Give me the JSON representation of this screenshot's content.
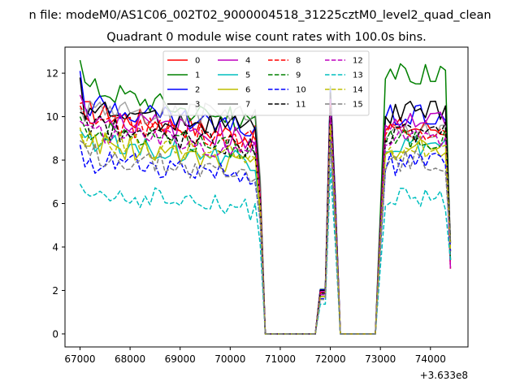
{
  "chart_data": {
    "type": "line",
    "suptitle": "n file: modeM0/AS1C06_002T02_9000004518_31225cztM0_level2_quad_clean",
    "title": "Quadrant 0 module wise count rates with 100.0s bins.",
    "xlabel": "",
    "ylabel": "",
    "x_offset_label": "+3.633e8",
    "xlim": [
      66700,
      74750
    ],
    "ylim": [
      -0.6,
      13.2
    ],
    "xticks": [
      67000,
      68000,
      69000,
      70000,
      71000,
      72000,
      73000,
      74000
    ],
    "yticks": [
      0,
      2,
      4,
      6,
      8,
      10,
      12
    ],
    "legend_location": "upper center",
    "legend_columns": 4,
    "shape": {
      "start": 67000,
      "step": 100,
      "drop_start": 70600,
      "drop_end": 70800,
      "gap1_end": 71700,
      "peak": 72000,
      "gap2_start": 72200,
      "gap2_end": 72900,
      "resume": 73100,
      "end": 74400,
      "final_drop_value": 3.0
    },
    "series": [
      {
        "name": "0",
        "color": "#ff0000",
        "dash": "solid",
        "level": 10.3,
        "first": 10.6,
        "end_level": 9.0,
        "post_level": 9.5,
        "peak": 10.6
      },
      {
        "name": "1",
        "color": "#008000",
        "dash": "solid",
        "level": 11.5,
        "first": 12.6,
        "end_level": 9.6,
        "post_level": 11.3,
        "peak": 11.4
      },
      {
        "name": "2",
        "color": "#0000ff",
        "dash": "solid",
        "level": 10.6,
        "first": 12.1,
        "end_level": 9.3,
        "post_level": 10.1,
        "peak": 11.3
      },
      {
        "name": "3",
        "color": "#000000",
        "dash": "solid",
        "level": 10.3,
        "first": 11.8,
        "end_level": 9.4,
        "post_level": 10.2,
        "peak": 11.1
      },
      {
        "name": "4",
        "color": "#bf00bf",
        "dash": "solid",
        "level": 10.1,
        "first": 11.0,
        "end_level": 8.9,
        "post_level": 9.8,
        "peak": 10.8
      },
      {
        "name": "5",
        "color": "#00bfbf",
        "dash": "solid",
        "level": 9.0,
        "first": 9.4,
        "end_level": 7.9,
        "post_level": 8.6,
        "peak": 9.6
      },
      {
        "name": "6",
        "color": "#bfbf00",
        "dash": "solid",
        "level": 8.9,
        "first": 9.2,
        "end_level": 7.6,
        "post_level": 8.5,
        "peak": 9.5
      },
      {
        "name": "7",
        "color": "#808080",
        "dash": "solid",
        "level": 10.3,
        "first": 10.4,
        "end_level": 10.0,
        "post_level": 9.2,
        "peak": 10.4
      },
      {
        "name": "8",
        "color": "#ff0000",
        "dash": "dashed",
        "level": 9.8,
        "first": 10.5,
        "end_level": 8.8,
        "post_level": 9.4,
        "peak": 10.5
      },
      {
        "name": "9",
        "color": "#008000",
        "dash": "dashed",
        "level": 9.5,
        "first": 10.0,
        "end_level": 8.4,
        "post_level": 9.0,
        "peak": 10.0
      },
      {
        "name": "10",
        "color": "#0000ff",
        "dash": "dashed",
        "level": 8.0,
        "first": 8.7,
        "end_level": 7.2,
        "post_level": 7.8,
        "peak": 9.0
      },
      {
        "name": "11",
        "color": "#000000",
        "dash": "dashed",
        "level": 9.6,
        "first": 10.2,
        "end_level": 8.6,
        "post_level": 9.2,
        "peak": 10.4
      },
      {
        "name": "12",
        "color": "#bf00bf",
        "dash": "dashed",
        "level": 9.4,
        "first": 9.8,
        "end_level": 8.4,
        "post_level": 9.0,
        "peak": 10.0
      },
      {
        "name": "13",
        "color": "#00bfbf",
        "dash": "dashed",
        "level": 6.6,
        "first": 6.9,
        "end_level": 5.7,
        "post_level": 6.2,
        "peak": 7.6
      },
      {
        "name": "14",
        "color": "#bfbf00",
        "dash": "dashed",
        "level": 9.0,
        "first": 9.5,
        "end_level": 8.0,
        "post_level": 8.6,
        "peak": 9.6
      },
      {
        "name": "15",
        "color": "#808080",
        "dash": "dashed",
        "level": 8.3,
        "first": 8.9,
        "end_level": 7.2,
        "post_level": 7.9,
        "peak": 8.8
      }
    ]
  }
}
